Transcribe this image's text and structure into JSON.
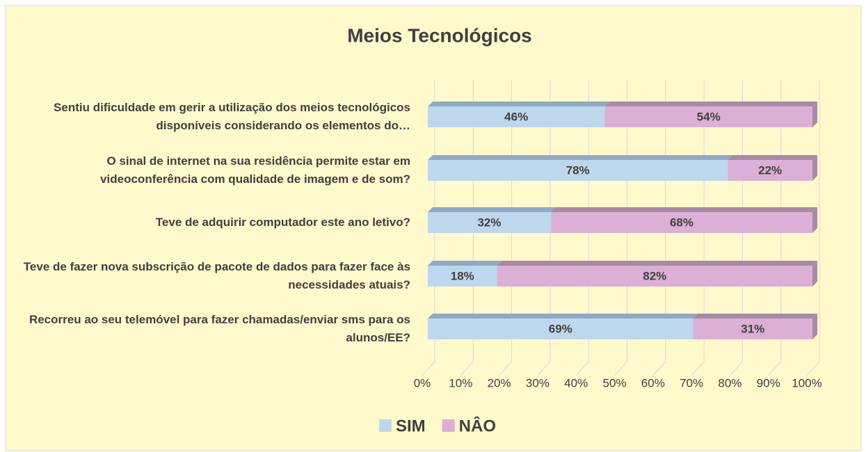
{
  "chart_data": {
    "type": "bar",
    "orientation": "horizontal",
    "stacked": true,
    "title": "Meios Tecnológicos",
    "categories": [
      "Sentiu dificuldade em gerir a utilização dos meios tecnológicos disponíveis considerando os elementos do…",
      "O sinal de internet na sua residência permite estar em videoconferência com qualidade de imagem e de som?",
      "Teve de adquirir computador este ano letivo?",
      "Teve de fazer nova subscrição de pacote de dados para fazer face às necessidades atuais?",
      "Recorreu ao seu telemóvel para fazer chamadas/enviar sms para os alunos/EE?"
    ],
    "series": [
      {
        "name": "SIM",
        "color": "#bdd7ee",
        "values": [
          46,
          78,
          32,
          18,
          69
        ],
        "value_labels": [
          "46%",
          "78%",
          "32%",
          "18%",
          "69%"
        ]
      },
      {
        "name": "NÂO",
        "color": "#dbafd6",
        "values": [
          54,
          22,
          68,
          82,
          31
        ],
        "value_labels": [
          "54%",
          "22%",
          "68%",
          "82%",
          "31%"
        ]
      }
    ],
    "xlim": [
      0,
      100
    ],
    "xticks": [
      {
        "value": 0,
        "label": "0%"
      },
      {
        "value": 10,
        "label": "10%"
      },
      {
        "value": 20,
        "label": "20%"
      },
      {
        "value": 30,
        "label": "30%"
      },
      {
        "value": 40,
        "label": "40%"
      },
      {
        "value": 50,
        "label": "50%"
      },
      {
        "value": 60,
        "label": "60%"
      },
      {
        "value": 70,
        "label": "70%"
      },
      {
        "value": 80,
        "label": "80%"
      },
      {
        "value": 90,
        "label": "90%"
      },
      {
        "value": 100,
        "label": "100%"
      }
    ],
    "grid": true,
    "legend": "bottom"
  }
}
